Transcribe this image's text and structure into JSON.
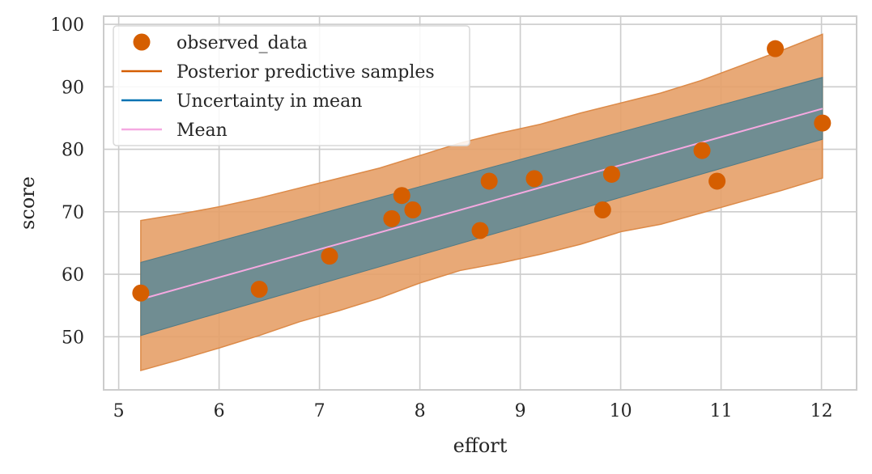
{
  "chart_data": {
    "type": "scatter",
    "xlabel": "effort",
    "ylabel": "score",
    "xlim": [
      4.85,
      12.35
    ],
    "ylim": [
      41.5,
      101.3
    ],
    "xticks": [
      5,
      6,
      7,
      8,
      9,
      10,
      11,
      12
    ],
    "yticks": [
      50,
      60,
      70,
      80,
      90,
      100
    ],
    "grid": true,
    "legend_position": "top-left",
    "legend": [
      {
        "label": "observed_data",
        "marker": "circle",
        "color": "#d55e00"
      },
      {
        "label": "Posterior predictive samples",
        "marker": "line",
        "color": "#d55e00"
      },
      {
        "label": "Uncertainty in mean",
        "marker": "line",
        "color": "#0072b2"
      },
      {
        "label": "Mean",
        "marker": "line",
        "color": "#f5a9e1"
      }
    ],
    "observed_data": {
      "x": [
        5.22,
        6.4,
        7.1,
        7.72,
        7.82,
        7.93,
        8.6,
        8.69,
        9.14,
        9.82,
        9.91,
        10.81,
        10.96,
        11.54,
        12.01
      ],
      "y": [
        57.0,
        57.6,
        62.9,
        68.9,
        72.6,
        70.3,
        67.0,
        74.9,
        75.3,
        70.3,
        76.0,
        79.8,
        74.9,
        96.1,
        84.2
      ]
    },
    "mean_line": {
      "x": [
        5.22,
        12.01
      ],
      "y": [
        56.0,
        86.5
      ]
    },
    "mean_band": {
      "x": [
        5.22,
        12.01
      ],
      "lower": [
        50.2,
        81.6
      ],
      "upper": [
        61.9,
        91.5
      ]
    },
    "predictive_band": {
      "x": [
        5.22,
        5.6,
        6.0,
        6.4,
        6.8,
        7.2,
        7.6,
        8.0,
        8.4,
        8.8,
        9.2,
        9.6,
        10.0,
        10.4,
        10.8,
        11.2,
        11.6,
        12.01
      ],
      "lower": [
        44.6,
        46.3,
        48.2,
        50.2,
        52.4,
        54.2,
        56.2,
        58.6,
        60.6,
        61.8,
        63.2,
        64.8,
        66.8,
        68.0,
        69.8,
        71.6,
        73.4,
        75.4
      ],
      "upper": [
        68.6,
        69.6,
        70.8,
        72.2,
        73.8,
        75.4,
        77.0,
        79.0,
        81.0,
        82.6,
        84.0,
        85.8,
        87.4,
        89.0,
        91.0,
        93.4,
        95.8,
        98.4
      ]
    },
    "colors": {
      "observed": "#d55e00",
      "predictive_fill": "#e5a068",
      "predictive_edge": "#dc8a48",
      "mean_band_fill": "#708d92",
      "mean_band_edge": "#4f7a86",
      "mean_line": "#f5a9e1",
      "grid": "#cccccc",
      "spine": "#cccccc"
    }
  }
}
